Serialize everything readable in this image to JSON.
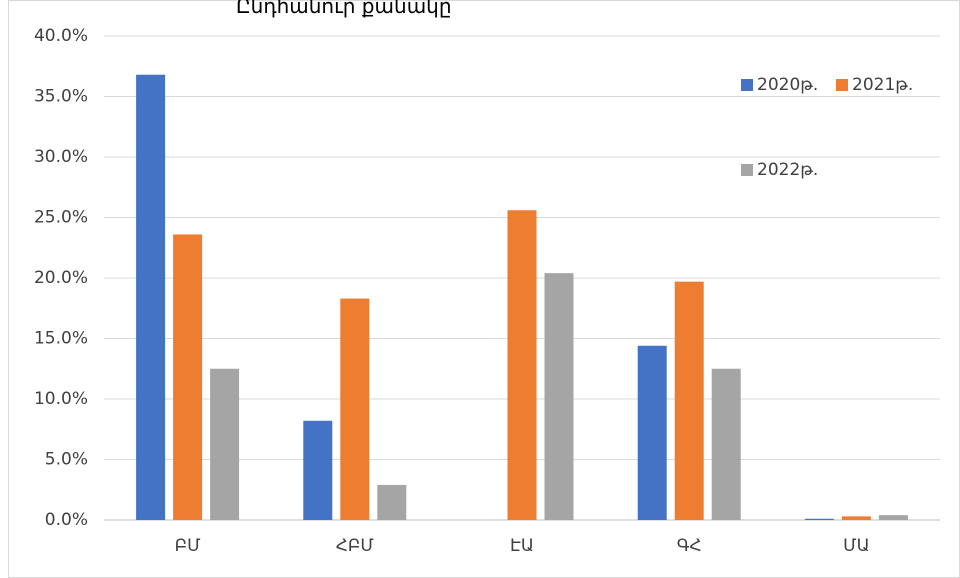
{
  "chart_data": {
    "type": "bar",
    "title": "Ընդհանուր քանակը",
    "categories": [
      "ԲՄ",
      "ՀԲՄ",
      "ԷԱ",
      "ԳՀ",
      "ՄԱ"
    ],
    "series": [
      {
        "name": "2020թ.",
        "color": "#4472C4",
        "values": [
          36.8,
          8.2,
          0.0,
          14.4,
          0.1
        ]
      },
      {
        "name": "2021թ.",
        "color": "#ED7D31",
        "values": [
          23.6,
          18.3,
          25.6,
          19.7,
          0.3
        ]
      },
      {
        "name": "2022թ.",
        "color": "#A5A5A5",
        "values": [
          12.5,
          2.9,
          20.4,
          12.5,
          0.4
        ]
      }
    ],
    "ylim": [
      0,
      40
    ],
    "yticks": [
      "0.0%",
      "5.0%",
      "10.0%",
      "15.0%",
      "20.0%",
      "25.0%",
      "30.0%",
      "35.0%",
      "40.0%"
    ],
    "grid": true,
    "legend_position": "top-right"
  }
}
